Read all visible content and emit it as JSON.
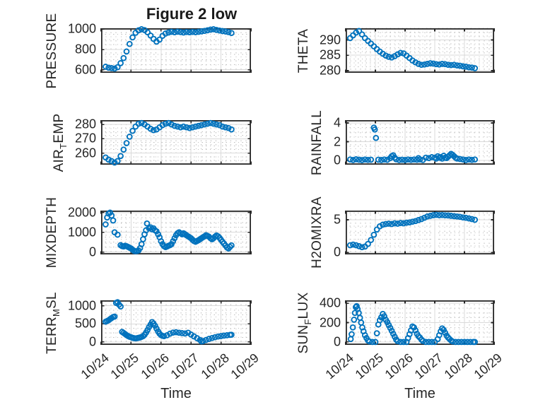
{
  "title": "Figure 2 low",
  "x_axis": {
    "label": "Time",
    "lim": [
      0,
      5
    ],
    "ticks": [
      0,
      1,
      2,
      3,
      4,
      5
    ],
    "tick_labels": [
      "10/24",
      "10/25",
      "10/26",
      "10/27",
      "10/28",
      "10/29"
    ],
    "minor_step": 0.1666667
  },
  "style": {
    "marker_color": "#0072BD",
    "axis_color": "#262626",
    "major_grid_color": "#d9d9d9",
    "minor_grid_color": "#bdbdbd"
  },
  "chart_data": [
    {
      "type": "scatter",
      "name": "PRESSURE",
      "ylabel_pre": "PRESSURE",
      "ylabel_sub": "",
      "ylabel_post": "",
      "ylim": [
        570,
        1010
      ],
      "yticks": [
        600,
        800,
        1000
      ],
      "ytick_labels": [
        "600",
        "800",
        "1000"
      ],
      "yminor": 50,
      "x": [
        0.15,
        0.25,
        0.35,
        0.45,
        0.55,
        0.65,
        0.75,
        0.85,
        0.95,
        1.05,
        1.15,
        1.25,
        1.35,
        1.45,
        1.55,
        1.65,
        1.75,
        1.85,
        1.95,
        2.05,
        2.15,
        2.25,
        2.35,
        2.45,
        2.55,
        2.65,
        2.75,
        2.85,
        2.95,
        3.05,
        3.15,
        3.25,
        3.35,
        3.45,
        3.55,
        3.65,
        3.75,
        3.85,
        3.95,
        4.05,
        4.15,
        4.25,
        4.35
      ],
      "y": [
        630,
        620,
        616,
        612,
        625,
        665,
        715,
        780,
        855,
        920,
        965,
        990,
        1000,
        992,
        970,
        938,
        905,
        878,
        898,
        935,
        958,
        968,
        975,
        970,
        976,
        972,
        968,
        973,
        970,
        974,
        971,
        975,
        979,
        984,
        990,
        997,
        1000,
        994,
        988,
        983,
        978,
        972,
        963
      ]
    },
    {
      "type": "scatter",
      "name": "THETA",
      "ylabel_pre": "THETA",
      "ylabel_sub": "",
      "ylabel_post": "",
      "ylim": [
        279.3,
        293.8
      ],
      "yticks": [
        280,
        285,
        290
      ],
      "ytick_labels": [
        "280",
        "285",
        "290"
      ],
      "yminor": 1.25,
      "x": [
        0.15,
        0.25,
        0.35,
        0.45,
        0.55,
        0.65,
        0.75,
        0.85,
        0.95,
        1.05,
        1.15,
        1.25,
        1.35,
        1.45,
        1.55,
        1.65,
        1.75,
        1.85,
        1.95,
        2.05,
        2.15,
        2.25,
        2.35,
        2.45,
        2.55,
        2.65,
        2.75,
        2.85,
        2.95,
        3.05,
        3.15,
        3.25,
        3.35,
        3.45,
        3.55,
        3.65,
        3.75,
        3.85,
        3.95,
        4.05,
        4.15,
        4.25,
        4.35
      ],
      "y": [
        290.6,
        291.5,
        292.4,
        292.9,
        291.8,
        290.6,
        289.7,
        288.8,
        287.9,
        287.0,
        286.2,
        285.5,
        284.9,
        284.5,
        284.3,
        284.7,
        285.3,
        285.8,
        285.6,
        284.9,
        284.1,
        283.3,
        282.7,
        282.2,
        281.9,
        282.0,
        282.2,
        282.4,
        282.3,
        282.1,
        282.0,
        282.2,
        282.1,
        281.9,
        281.8,
        281.9,
        281.7,
        281.6,
        281.4,
        281.3,
        281.1,
        281.0,
        280.8
      ]
    },
    {
      "type": "scatter",
      "name": "AIR_TEMP",
      "ylabel_pre": "AIR",
      "ylabel_sub": "T",
      "ylabel_post": "EMP",
      "ylim": [
        252,
        283
      ],
      "yticks": [
        260,
        270,
        280
      ],
      "ytick_labels": [
        "260",
        "270",
        "280"
      ],
      "yminor": 2.5,
      "x": [
        0.15,
        0.25,
        0.35,
        0.45,
        0.55,
        0.65,
        0.75,
        0.85,
        0.95,
        1.05,
        1.15,
        1.25,
        1.35,
        1.45,
        1.55,
        1.65,
        1.75,
        1.85,
        1.95,
        2.05,
        2.15,
        2.25,
        2.35,
        2.45,
        2.55,
        2.65,
        2.75,
        2.85,
        2.95,
        3.05,
        3.15,
        3.25,
        3.35,
        3.45,
        3.55,
        3.65,
        3.75,
        3.85,
        3.95,
        4.05,
        4.15,
        4.25,
        4.35
      ],
      "y": [
        257,
        255.5,
        254.5,
        253.5,
        254.5,
        258,
        262.5,
        267,
        271.5,
        275.5,
        278.5,
        280.5,
        281,
        280,
        278.5,
        277,
        276,
        276.5,
        278,
        279.5,
        280.5,
        281,
        280,
        279,
        278.5,
        278,
        278.5,
        278,
        277.5,
        278,
        278.5,
        279,
        279.5,
        280,
        280.5,
        281,
        280.5,
        280,
        279.5,
        278.5,
        278,
        277.5,
        276.5
      ]
    },
    {
      "type": "scatter",
      "name": "RAINFALL",
      "ylabel_pre": "RAINFALL",
      "ylabel_sub": "",
      "ylabel_post": "",
      "ylim": [
        -0.45,
        4.3
      ],
      "yticks": [
        0,
        2,
        4
      ],
      "ytick_labels": [
        "0",
        "2",
        "4"
      ],
      "yminor": 0.5,
      "x": [
        0.15,
        0.25,
        0.35,
        0.45,
        0.55,
        0.65,
        0.75,
        0.85,
        0.95,
        0.98,
        1.02,
        1.1,
        1.2,
        1.3,
        1.4,
        1.5,
        1.55,
        1.6,
        1.65,
        1.7,
        1.8,
        1.9,
        2.0,
        2.1,
        2.2,
        2.3,
        2.4,
        2.45,
        2.5,
        2.6,
        2.7,
        2.8,
        2.9,
        3.0,
        3.05,
        3.1,
        3.15,
        3.2,
        3.25,
        3.3,
        3.35,
        3.4,
        3.45,
        3.5,
        3.55,
        3.6,
        3.65,
        3.7,
        3.75,
        3.85,
        3.95,
        4.05,
        4.15,
        4.25,
        4.35
      ],
      "y": [
        0.1,
        0.05,
        0.12,
        0.08,
        0.04,
        0.1,
        0.06,
        0.08,
        3.5,
        3.3,
        2.4,
        0.08,
        0.05,
        0.1,
        0.06,
        0.25,
        0.45,
        0.55,
        0.3,
        0.12,
        0.05,
        0.08,
        0.05,
        0.1,
        0.06,
        0.1,
        0.08,
        0.25,
        0.1,
        0.05,
        0.3,
        0.25,
        0.35,
        0.3,
        0.2,
        0.45,
        0.3,
        0.35,
        0.2,
        0.5,
        0.3,
        0.25,
        0.4,
        0.55,
        0.7,
        0.6,
        0.45,
        0.3,
        0.2,
        0.15,
        0.1,
        0.05,
        0.1,
        0.06,
        0.1
      ]
    },
    {
      "type": "scatter",
      "name": "MIXDEPTH",
      "ylabel_pre": "MIXDEPTH",
      "ylabel_sub": "",
      "ylabel_post": "",
      "ylim": [
        -120,
        2100
      ],
      "yticks": [
        0,
        1000,
        2000
      ],
      "ytick_labels": [
        "0",
        "1000",
        "2000"
      ],
      "yminor": 250,
      "x": [
        0.15,
        0.2,
        0.25,
        0.3,
        0.35,
        0.4,
        0.45,
        0.55,
        0.65,
        0.7,
        0.75,
        0.8,
        0.85,
        0.9,
        0.95,
        1.0,
        1.05,
        1.1,
        1.15,
        1.2,
        1.25,
        1.3,
        1.35,
        1.4,
        1.45,
        1.5,
        1.53,
        1.6,
        1.65,
        1.7,
        1.75,
        1.8,
        1.85,
        1.9,
        1.95,
        2.0,
        2.05,
        2.1,
        2.15,
        2.2,
        2.25,
        2.3,
        2.35,
        2.4,
        2.45,
        2.5,
        2.55,
        2.6,
        2.65,
        2.7,
        2.75,
        2.8,
        2.85,
        2.9,
        2.95,
        3.0,
        3.05,
        3.1,
        3.15,
        3.2,
        3.25,
        3.3,
        3.35,
        3.4,
        3.45,
        3.5,
        3.55,
        3.6,
        3.65,
        3.7,
        3.75,
        3.8,
        3.85,
        3.9,
        3.95,
        4.0,
        4.05,
        4.1,
        4.15,
        4.2,
        4.25,
        4.3,
        4.35
      ],
      "y": [
        1400,
        1750,
        1950,
        2000,
        1850,
        1600,
        1000,
        880,
        350,
        300,
        280,
        320,
        300,
        260,
        220,
        180,
        120,
        60,
        40,
        50,
        80,
        200,
        400,
        650,
        900,
        1100,
        1450,
        1200,
        1250,
        1150,
        1200,
        1100,
        1050,
        900,
        750,
        550,
        400,
        300,
        250,
        280,
        320,
        350,
        400,
        550,
        700,
        850,
        950,
        1000,
        950,
        900,
        950,
        900,
        850,
        800,
        750,
        700,
        620,
        560,
        520,
        560,
        600,
        650,
        700,
        750,
        800,
        850,
        820,
        780,
        700,
        650,
        700,
        780,
        840,
        800,
        720,
        620,
        520,
        430,
        330,
        230,
        180,
        260,
        340
      ]
    },
    {
      "type": "scatter",
      "name": "H2OMIXRA",
      "ylabel_pre": "H2OMIXRA",
      "ylabel_sub": "",
      "ylabel_post": "",
      "ylim": [
        -0.3,
        6.4
      ],
      "yticks": [
        0,
        5
      ],
      "ytick_labels": [
        "0",
        "5"
      ],
      "yminor": 1,
      "x": [
        0.15,
        0.25,
        0.35,
        0.45,
        0.55,
        0.65,
        0.75,
        0.85,
        0.95,
        1.05,
        1.15,
        1.25,
        1.35,
        1.45,
        1.55,
        1.65,
        1.75,
        1.85,
        1.95,
        2.05,
        2.15,
        2.25,
        2.35,
        2.45,
        2.55,
        2.65,
        2.75,
        2.85,
        2.95,
        3.05,
        3.15,
        3.25,
        3.35,
        3.45,
        3.55,
        3.65,
        3.75,
        3.85,
        3.95,
        4.05,
        4.15,
        4.25,
        4.35
      ],
      "y": [
        1.1,
        1.2,
        1.1,
        0.95,
        0.8,
        0.9,
        1.3,
        1.9,
        2.7,
        3.5,
        4.0,
        4.25,
        4.35,
        4.4,
        4.35,
        4.45,
        4.4,
        4.5,
        4.45,
        4.55,
        4.6,
        4.7,
        4.8,
        4.95,
        5.1,
        5.3,
        5.5,
        5.6,
        5.7,
        5.75,
        5.7,
        5.72,
        5.68,
        5.65,
        5.6,
        5.55,
        5.5,
        5.45,
        5.35,
        5.3,
        5.2,
        5.1,
        5.0
      ]
    },
    {
      "type": "scatter",
      "name": "TERR_MSL",
      "ylabel_pre": "TERR",
      "ylabel_sub": "M",
      "ylabel_post": "SL",
      "ylim": [
        -80,
        1150
      ],
      "yticks": [
        0,
        500,
        1000
      ],
      "ytick_labels": [
        "0",
        "500",
        "1000"
      ],
      "yminor": 125,
      "x": [
        0.15,
        0.2,
        0.25,
        0.3,
        0.35,
        0.4,
        0.45,
        0.5,
        0.55,
        0.6,
        0.65,
        0.7,
        0.75,
        0.8,
        0.85,
        0.9,
        0.95,
        1.0,
        1.05,
        1.1,
        1.15,
        1.2,
        1.25,
        1.3,
        1.35,
        1.4,
        1.45,
        1.5,
        1.55,
        1.6,
        1.65,
        1.7,
        1.75,
        1.8,
        1.85,
        1.9,
        1.95,
        2.0,
        2.05,
        2.1,
        2.2,
        2.3,
        2.4,
        2.5,
        2.6,
        2.7,
        2.8,
        2.9,
        3.0,
        3.1,
        3.2,
        3.3,
        3.35,
        3.4,
        3.5,
        3.6,
        3.7,
        3.8,
        3.9,
        4.0,
        4.1,
        4.2,
        4.3,
        4.35
      ],
      "y": [
        560,
        580,
        600,
        630,
        660,
        690,
        700,
        1080,
        1100,
        1030,
        980,
        280,
        250,
        220,
        190,
        165,
        145,
        130,
        115,
        105,
        100,
        105,
        115,
        125,
        140,
        160,
        200,
        260,
        330,
        410,
        480,
        550,
        510,
        450,
        370,
        290,
        230,
        190,
        170,
        160,
        185,
        230,
        260,
        270,
        255,
        245,
        235,
        255,
        205,
        155,
        105,
        55,
        15,
        25,
        55,
        85,
        110,
        130,
        150,
        165,
        175,
        185,
        195,
        200
      ]
    },
    {
      "type": "scatter",
      "name": "SUN_FLUX",
      "ylabel_pre": "SUN",
      "ylabel_sub": "F",
      "ylabel_post": "LUX",
      "ylim": [
        -30,
        430
      ],
      "yticks": [
        0,
        200,
        400
      ],
      "ytick_labels": [
        "0",
        "200",
        "400"
      ],
      "yminor": 50,
      "x": [
        0.17,
        0.2,
        0.24,
        0.28,
        0.31,
        0.34,
        0.37,
        0.4,
        0.44,
        0.48,
        0.52,
        0.56,
        0.6,
        0.65,
        0.7,
        0.75,
        0.8,
        0.9,
        1.0,
        1.05,
        1.1,
        1.15,
        1.2,
        1.25,
        1.3,
        1.35,
        1.4,
        1.45,
        1.5,
        1.55,
        1.6,
        1.65,
        1.7,
        1.75,
        1.85,
        1.95,
        2.05,
        2.1,
        2.15,
        2.2,
        2.25,
        2.3,
        2.35,
        2.4,
        2.45,
        2.5,
        2.55,
        2.6,
        2.7,
        2.8,
        2.9,
        3.0,
        3.1,
        3.15,
        3.2,
        3.25,
        3.3,
        3.35,
        3.4,
        3.45,
        3.5,
        3.55,
        3.6,
        3.7,
        3.8,
        3.9,
        4.0,
        4.1,
        4.2,
        4.3,
        4.35
      ],
      "y": [
        30,
        80,
        150,
        230,
        300,
        360,
        370,
        340,
        300,
        250,
        200,
        150,
        110,
        70,
        40,
        15,
        5,
        0,
        0,
        90,
        180,
        225,
        255,
        290,
        265,
        230,
        205,
        175,
        145,
        115,
        85,
        55,
        25,
        8,
        0,
        0,
        0,
        40,
        80,
        120,
        160,
        150,
        120,
        85,
        60,
        45,
        25,
        10,
        0,
        0,
        0,
        0,
        30,
        70,
        110,
        140,
        125,
        95,
        65,
        45,
        30,
        15,
        5,
        0,
        0,
        0,
        0,
        0,
        0,
        0,
        0
      ]
    }
  ]
}
